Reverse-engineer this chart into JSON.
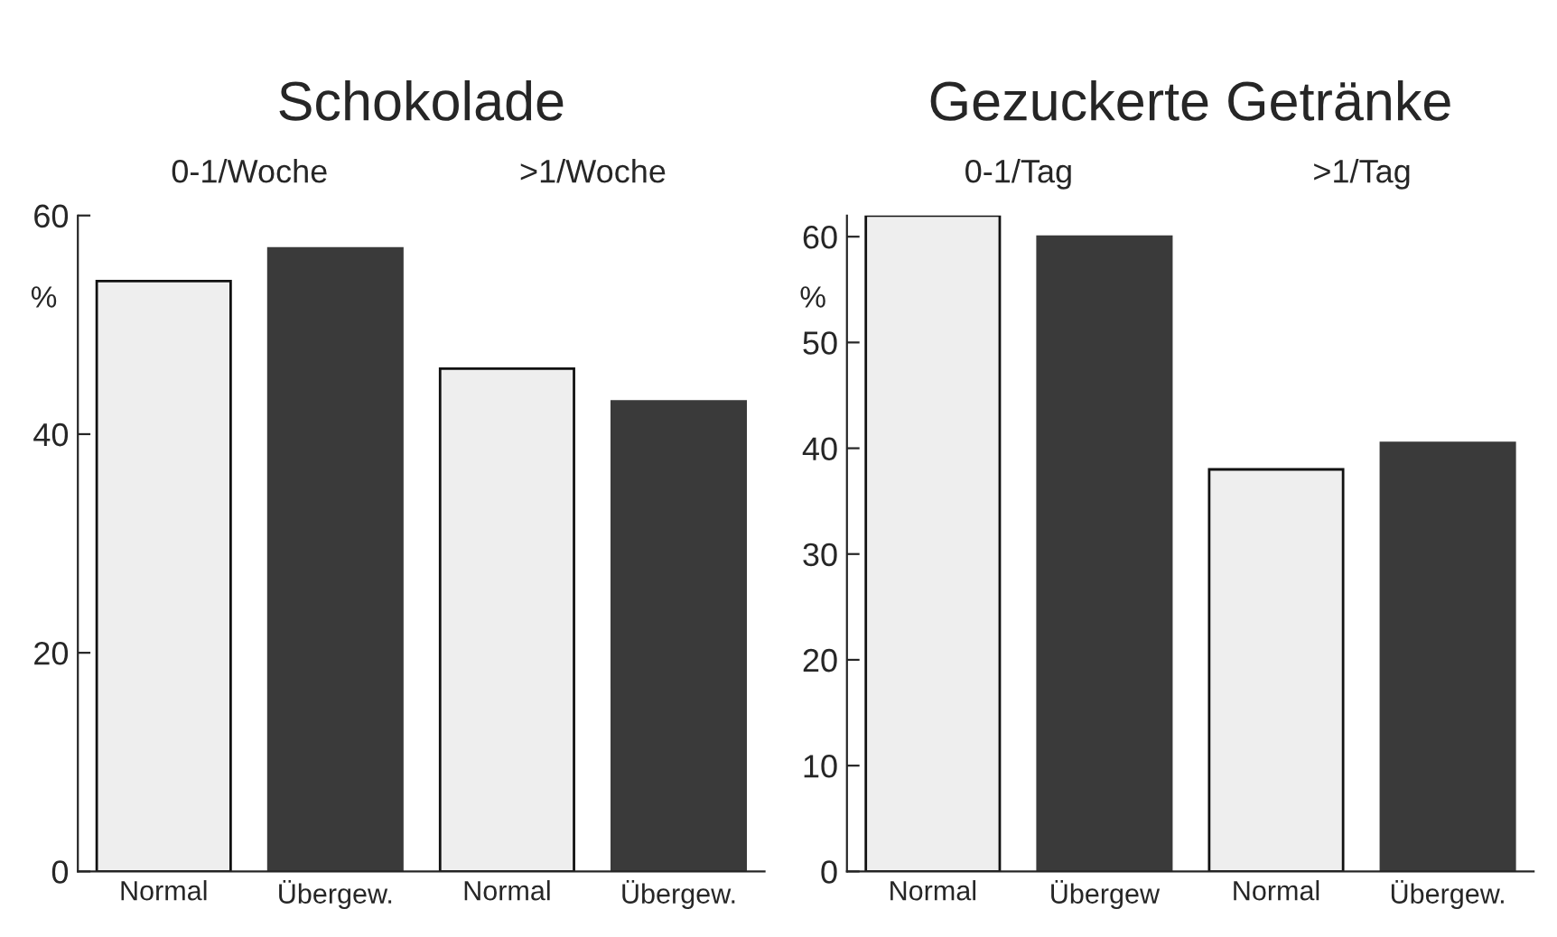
{
  "chart_data": [
    {
      "type": "bar",
      "title": "Schokolade",
      "ylabel": "%",
      "categories": [
        "Normal",
        "Übergew.",
        "Normal",
        "Übergew."
      ],
      "values": [
        54,
        57,
        46,
        43
      ],
      "colors": [
        "#eeeeee",
        "#3a3a3a",
        "#eeeeee",
        "#3a3a3a"
      ],
      "ylim": [
        0,
        60
      ],
      "yticks": [
        0,
        20,
        40,
        60
      ],
      "grid": false,
      "legend": false,
      "annotations": [
        "0-1/Woche",
        ">1/Woche"
      ]
    },
    {
      "type": "bar",
      "title": "Gezuckerte Getränke",
      "ylabel": "%",
      "categories": [
        "Normal",
        "Übergew",
        "Normal",
        "Übergew."
      ],
      "values": [
        62,
        60,
        38,
        40.5
      ],
      "colors": [
        "#eeeeee",
        "#3a3a3a",
        "#eeeeee",
        "#3a3a3a"
      ],
      "ylim": [
        0,
        62
      ],
      "yticks": [
        0,
        10,
        20,
        30,
        40,
        50,
        60
      ],
      "grid": false,
      "legend": false,
      "annotations": [
        "0-1/Tag",
        ">1/Tag"
      ]
    }
  ]
}
